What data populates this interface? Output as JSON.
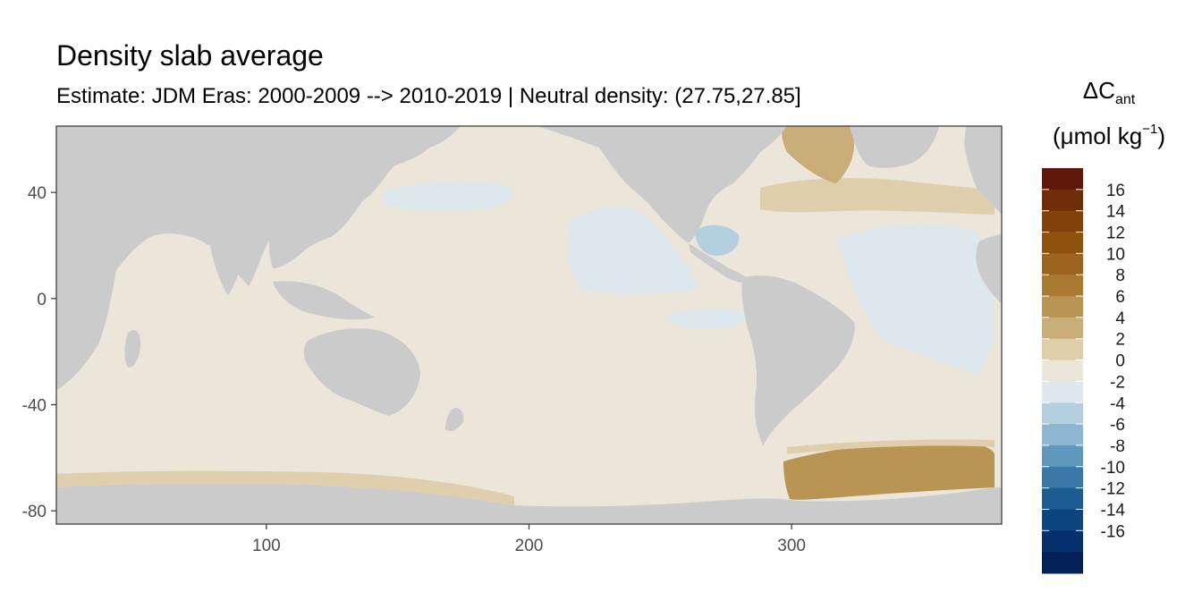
{
  "chart_data": {
    "type": "heatmap",
    "title": "Density slab average",
    "subtitle": "Estimate: JDM Eras: 2000-2009 --> 2010-2019 | Neutral density: (27.75,27.85]",
    "legend_title_main": "ΔC",
    "legend_title_sub": "ant",
    "legend_unit_open": "(μmol kg",
    "legend_unit_sup": "−1",
    "legend_unit_close": ")",
    "xlim": [
      20,
      380
    ],
    "ylim": [
      -85,
      65
    ],
    "x_ticks": [
      100,
      200,
      300
    ],
    "y_ticks": [
      40,
      0,
      -40,
      -80
    ],
    "x_tick_labels": [
      "100",
      "200",
      "300"
    ],
    "y_tick_labels": [
      "40",
      "0",
      "-40",
      "-80"
    ],
    "legend_breaks": [
      "16",
      "14",
      "12",
      "10",
      "8",
      "6",
      "4",
      "2",
      "0",
      "-2",
      "-4",
      "-6",
      "-8",
      "-10",
      "-12",
      "-14",
      "-16"
    ],
    "legend_colors": [
      "#5e1708",
      "#6f2e09",
      "#80410a",
      "#8f520d",
      "#9c6420",
      "#aa7a33",
      "#b89552",
      "#c9ad79",
      "#dfceac",
      "#ebe6d9",
      "#dde8ee",
      "#b3cfe0",
      "#8cb6d1",
      "#5f97bd",
      "#3978a8",
      "#1c5c92",
      "#0b447f",
      "#06306d",
      "#032058"
    ],
    "colors": {
      "land": "#cbcbcb",
      "near_zero_positive": "#ebe6d9",
      "near_zero_negative": "#dde8ee",
      "weak_positive": "#dfceac",
      "moderate_positive": "#c9ad79",
      "strong_positive": "#b89552",
      "negative": "#b3cfe0",
      "missing": "#ffffff"
    },
    "grid": false
  }
}
